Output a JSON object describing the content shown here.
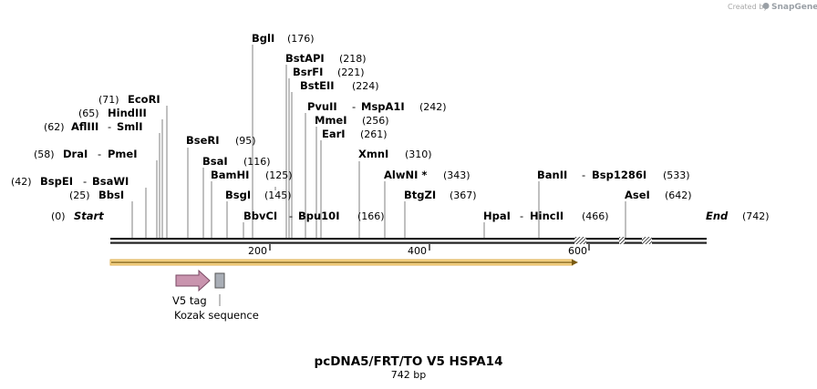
{
  "brand": {
    "prefix": "Created by",
    "name": "SnapGene"
  },
  "title": "pcDNA5/FRT/TO V5 HSPA14",
  "length_label": "742 bp",
  "start_label": "Start",
  "end_label": "End",
  "start_pos": "(0)",
  "end_pos": "(742)",
  "ticks": [
    "200",
    "400",
    "600"
  ],
  "features": {
    "v5_tag": "V5 tag",
    "kozak": "Kozak sequence"
  },
  "colors": {
    "v5_tag": "#c994ae",
    "kozak": "#a9aeb6",
    "orf": "#f5d58a",
    "backbone": "#222222"
  },
  "sites": [
    {
      "pos": "(25)",
      "names": [
        "BbsI"
      ]
    },
    {
      "pos": "(42)",
      "names": [
        "BspEI",
        "BsaWI"
      ]
    },
    {
      "pos": "(58)",
      "names": [
        "DraI",
        "PmeI"
      ]
    },
    {
      "pos": "(62)",
      "names": [
        "AflIII",
        "SmlI"
      ]
    },
    {
      "pos": "(65)",
      "names": [
        "HindIII"
      ]
    },
    {
      "pos": "(71)",
      "names": [
        "EcoRI"
      ]
    },
    {
      "pos": "(95)",
      "names": [
        "BseRI"
      ]
    },
    {
      "pos": "(116)",
      "names": [
        "BsaI"
      ]
    },
    {
      "pos": "(125)",
      "names": [
        "BamHI"
      ]
    },
    {
      "pos": "(145)",
      "names": [
        "BsgI"
      ]
    },
    {
      "pos": "(166)",
      "names": [
        "BbvCI",
        "Bpu10I"
      ]
    },
    {
      "pos": "(176)",
      "names": [
        "BglI"
      ]
    },
    {
      "pos": "(218)",
      "names": [
        "BstAPI"
      ]
    },
    {
      "pos": "(221)",
      "names": [
        "BsrFI"
      ]
    },
    {
      "pos": "(224)",
      "names": [
        "BstEII"
      ]
    },
    {
      "pos": "(242)",
      "names": [
        "PvuII",
        "MspA1I"
      ]
    },
    {
      "pos": "(256)",
      "names": [
        "MmeI"
      ]
    },
    {
      "pos": "(261)",
      "names": [
        "EarI"
      ]
    },
    {
      "pos": "(310)",
      "names": [
        "XmnI"
      ]
    },
    {
      "pos": "(343)",
      "names": [
        "AlwNI *"
      ]
    },
    {
      "pos": "(367)",
      "names": [
        "BtgZI"
      ]
    },
    {
      "pos": "(466)",
      "names": [
        "HpaI",
        "HincII"
      ]
    },
    {
      "pos": "(533)",
      "names": [
        "BanII",
        "Bsp1286I"
      ]
    },
    {
      "pos": "(642)",
      "names": [
        "AseI"
      ]
    }
  ]
}
